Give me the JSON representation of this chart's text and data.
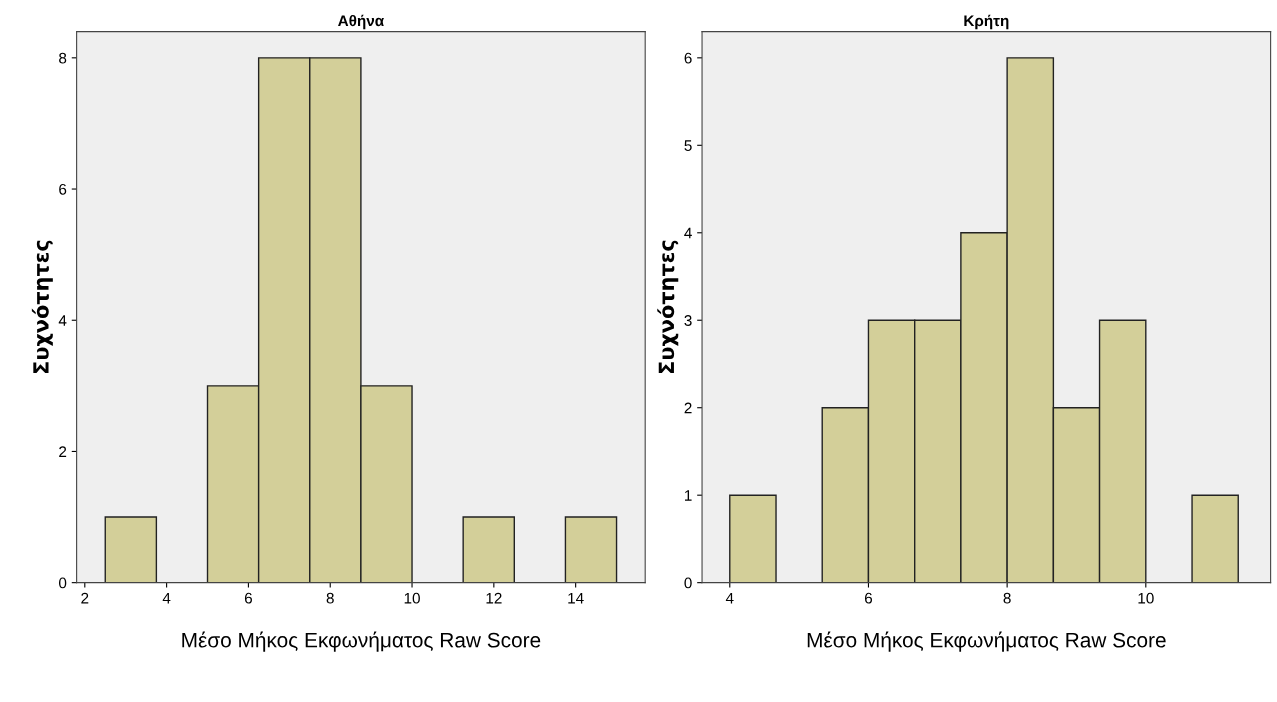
{
  "chart_data": [
    {
      "type": "histogram",
      "title": "Αθήνα",
      "xlabel": "Μέσο Μήκος Εκφωνήματος Raw Score",
      "ylabel": "Συχνότητες",
      "bins": [
        2.5,
        3.75,
        5,
        6.25,
        7.5,
        8.75,
        10,
        11.25,
        12.5,
        13.75,
        15
      ],
      "values": [
        1,
        0,
        3,
        8,
        8,
        3,
        0,
        1,
        0,
        1
      ],
      "color": "#d3cf99",
      "xlim": [
        1.8,
        15.7
      ],
      "xticks": [
        2,
        4,
        6,
        8,
        10,
        12,
        14
      ],
      "ylim": [
        0,
        8.4
      ],
      "yticks": [
        0,
        2,
        4,
        6,
        8
      ],
      "grid": false,
      "legend": false
    },
    {
      "type": "histogram",
      "title": "Κρήτη",
      "xlabel": "Μέσο Μήκος Εκφωνήματος Raw Score",
      "ylabel": "Συχνότητες",
      "bins": [
        4,
        4.667,
        5.333,
        6,
        6.667,
        7.333,
        8,
        8.667,
        9.333,
        10,
        10.667,
        11.333
      ],
      "values": [
        1,
        0,
        2,
        3,
        3,
        4,
        6,
        2,
        3,
        0,
        1
      ],
      "color": "#d3cf99",
      "xlim": [
        3.6,
        11.8
      ],
      "xticks": [
        4,
        6,
        8,
        10
      ],
      "ylim": [
        0,
        6.3
      ],
      "yticks": [
        0,
        1,
        2,
        3,
        4,
        5,
        6
      ],
      "grid": false,
      "legend": false
    }
  ]
}
